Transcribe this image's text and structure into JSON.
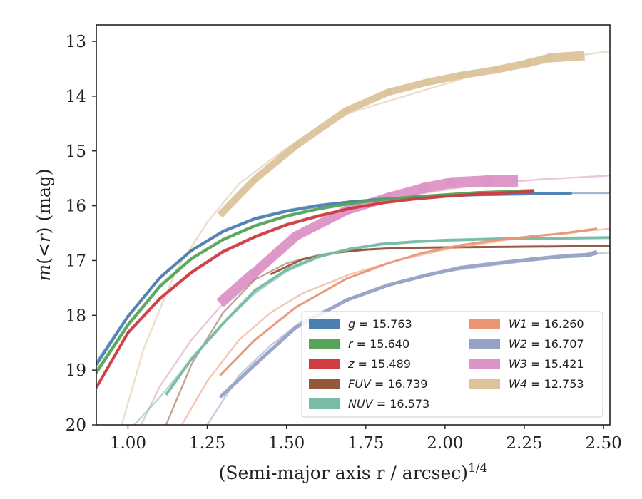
{
  "chart_data": {
    "type": "line",
    "xlabel": "(Semi-major axis r / arcsec)",
    "xlabel_sup": "1/4",
    "ylabel_parts": [
      "m",
      "(<",
      "r",
      ") (mag)"
    ],
    "xlim": [
      0.9,
      2.52
    ],
    "ylim": [
      20,
      12.7
    ],
    "y_inverted": true,
    "x_ticks": [
      1.0,
      1.25,
      1.5,
      1.75,
      2.0,
      2.25,
      2.5
    ],
    "x_tick_labels": [
      "1.00",
      "1.25",
      "1.50",
      "1.75",
      "2.00",
      "2.25",
      "2.50"
    ],
    "y_ticks": [
      13,
      14,
      15,
      16,
      17,
      18,
      19,
      20
    ],
    "y_tick_labels": [
      "13",
      "14",
      "15",
      "16",
      "17",
      "18",
      "19",
      "20"
    ],
    "legend": {
      "placement": "lower-right",
      "columns": 2,
      "entries": [
        {
          "band": "g",
          "value": "15.763",
          "color": "#4c7fb0"
        },
        {
          "band": "r",
          "value": "15.640",
          "color": "#55a45a"
        },
        {
          "band": "z",
          "value": "15.489",
          "color": "#cf3c42"
        },
        {
          "band": "FUV",
          "value": "16.739",
          "color": "#93573a"
        },
        {
          "band": "NUV",
          "value": "16.573",
          "color": "#78bba6"
        },
        {
          "band": "W1",
          "value": "16.260",
          "color": "#ea9674"
        },
        {
          "band": "W2",
          "value": "16.707",
          "color": "#97a2c4"
        },
        {
          "band": "W3",
          "value": "15.421",
          "color": "#dc94c6"
        },
        {
          "band": "W4",
          "value": "12.753",
          "color": "#dcc39c"
        }
      ]
    },
    "series": [
      {
        "band": "W4",
        "color": "#dcc39c",
        "model_x": [
          0.98,
          1.05,
          1.15,
          1.25,
          1.35,
          1.5,
          1.7,
          1.9,
          2.1,
          2.3,
          2.52
        ],
        "model_y": [
          20.0,
          18.6,
          17.2,
          16.3,
          15.6,
          14.95,
          14.3,
          13.95,
          13.6,
          13.35,
          13.18
        ],
        "data_x": [
          1.29,
          1.4,
          1.53,
          1.69,
          1.82,
          1.94,
          2.05,
          2.16,
          2.26,
          2.33,
          2.44
        ],
        "data_y": [
          16.17,
          15.52,
          14.9,
          14.26,
          13.93,
          13.75,
          13.62,
          13.52,
          13.4,
          13.3,
          13.26
        ],
        "data_w": [
          10,
          10,
          10,
          10,
          10,
          10,
          10,
          10,
          11,
          12,
          14
        ]
      },
      {
        "band": "W3",
        "color": "#dc94c6",
        "model_x": [
          1.0,
          1.1,
          1.2,
          1.29,
          1.4,
          1.55,
          1.7,
          1.9,
          2.1,
          2.3,
          2.52
        ],
        "model_y": [
          20.5,
          19.3,
          18.45,
          17.85,
          17.2,
          16.55,
          16.1,
          15.8,
          15.62,
          15.52,
          15.45
        ],
        "data_x": [
          1.29,
          1.4,
          1.53,
          1.69,
          1.82,
          1.93,
          2.02,
          2.13,
          2.23
        ],
        "data_y": [
          17.78,
          17.22,
          16.55,
          16.08,
          15.85,
          15.68,
          15.58,
          15.55,
          15.55
        ],
        "data_w": [
          16,
          14,
          13,
          13,
          13,
          14,
          15,
          16,
          17
        ]
      },
      {
        "band": "g",
        "color": "#4c7fb0",
        "model_x": [
          0.9,
          1.0,
          1.1,
          1.2,
          1.3,
          1.4,
          1.5,
          1.6,
          1.7,
          1.8,
          1.9,
          2.0,
          2.1,
          2.2,
          2.3,
          2.4,
          2.52
        ],
        "model_y": [
          18.85,
          18.0,
          17.3,
          16.8,
          16.45,
          16.22,
          16.08,
          15.98,
          15.92,
          15.88,
          15.85,
          15.82,
          15.8,
          15.79,
          15.78,
          15.77,
          15.77
        ],
        "data_x": [
          0.9,
          1.0,
          1.1,
          1.2,
          1.3,
          1.4,
          1.5,
          1.6,
          1.7,
          1.8,
          1.9,
          2.0,
          2.1,
          2.2,
          2.3,
          2.4
        ],
        "data_y": [
          18.9,
          18.02,
          17.32,
          16.82,
          16.47,
          16.24,
          16.1,
          16.0,
          15.93,
          15.88,
          15.85,
          15.82,
          15.8,
          15.79,
          15.78,
          15.77
        ],
        "data_w": [
          4,
          4,
          4,
          4,
          4,
          4,
          4,
          4,
          4,
          4,
          4,
          4,
          4,
          4,
          4,
          4
        ]
      },
      {
        "band": "r",
        "color": "#55a45a",
        "model_x": [
          0.9,
          1.0,
          1.1,
          1.2,
          1.3,
          1.4,
          1.5,
          1.6,
          1.7,
          1.8,
          1.9,
          2.0,
          2.1,
          2.2,
          2.28
        ],
        "model_y": [
          19.0,
          18.15,
          17.45,
          16.95,
          16.6,
          16.35,
          16.17,
          16.04,
          15.95,
          15.88,
          15.83,
          15.79,
          15.75,
          15.73,
          15.72
        ],
        "data_x": [
          0.9,
          1.0,
          1.1,
          1.2,
          1.3,
          1.4,
          1.5,
          1.6,
          1.7,
          1.8,
          1.9,
          2.0,
          2.1,
          2.2,
          2.28
        ],
        "data_y": [
          19.05,
          18.18,
          17.48,
          16.97,
          16.62,
          16.37,
          16.19,
          16.06,
          15.96,
          15.89,
          15.84,
          15.8,
          15.76,
          15.74,
          15.72
        ],
        "data_w": [
          4,
          4,
          4,
          4,
          4,
          4,
          4,
          4,
          4,
          4,
          4,
          4,
          4,
          4,
          4
        ]
      },
      {
        "band": "z",
        "color": "#cf3c42",
        "model_x": [
          0.9,
          1.0,
          1.1,
          1.2,
          1.3,
          1.4,
          1.5,
          1.6,
          1.7,
          1.8,
          1.9,
          2.0,
          2.1,
          2.2,
          2.28
        ],
        "model_y": [
          19.3,
          18.3,
          17.68,
          17.2,
          16.82,
          16.55,
          16.33,
          16.17,
          16.04,
          15.94,
          15.87,
          15.82,
          15.78,
          15.75,
          15.74
        ],
        "data_x": [
          0.9,
          1.0,
          1.1,
          1.2,
          1.3,
          1.4,
          1.5,
          1.6,
          1.7,
          1.8,
          1.9,
          2.0,
          2.1,
          2.2,
          2.28
        ],
        "data_y": [
          19.32,
          18.32,
          17.7,
          17.22,
          16.84,
          16.57,
          16.35,
          16.19,
          16.05,
          15.95,
          15.88,
          15.83,
          15.79,
          15.76,
          15.74
        ],
        "data_w": [
          4,
          4,
          4,
          4,
          4,
          4,
          4,
          4,
          4,
          4,
          4,
          4,
          4,
          4,
          4
        ]
      },
      {
        "band": "FUV",
        "color": "#93573a",
        "model_x": [
          1.12,
          1.2,
          1.3,
          1.4,
          1.5,
          1.6,
          1.7,
          1.8,
          1.9,
          2.0,
          2.2,
          2.4,
          2.52
        ],
        "model_y": [
          20.0,
          18.9,
          17.95,
          17.35,
          17.05,
          16.9,
          16.82,
          16.79,
          16.77,
          16.76,
          16.75,
          16.74,
          16.74
        ],
        "data_x": [
          1.45,
          1.55,
          1.65,
          1.75,
          1.85,
          2.0,
          2.2,
          2.4,
          2.52
        ],
        "data_y": [
          17.25,
          16.98,
          16.86,
          16.8,
          16.77,
          16.76,
          16.75,
          16.74,
          16.74
        ],
        "data_w": [
          3,
          3,
          3,
          3,
          3,
          3,
          3,
          3,
          3
        ]
      },
      {
        "band": "NUV",
        "color": "#78bba6",
        "model_x": [
          1.02,
          1.1,
          1.2,
          1.3,
          1.4,
          1.5,
          1.6,
          1.7,
          1.8,
          1.9,
          2.0,
          2.2,
          2.4,
          2.52
        ],
        "model_y": [
          20.0,
          19.5,
          18.8,
          18.15,
          17.6,
          17.2,
          16.95,
          16.78,
          16.7,
          16.66,
          16.63,
          16.6,
          16.59,
          16.58
        ],
        "data_x": [
          1.12,
          1.2,
          1.3,
          1.4,
          1.5,
          1.6,
          1.7,
          1.8,
          1.9,
          2.0,
          2.2,
          2.4,
          2.52
        ],
        "data_y": [
          19.45,
          18.8,
          18.15,
          17.55,
          17.17,
          16.93,
          16.79,
          16.7,
          16.66,
          16.63,
          16.6,
          16.59,
          16.58
        ],
        "data_w": [
          4,
          4,
          4,
          4,
          4,
          4,
          4,
          4,
          4,
          4,
          4,
          4,
          4
        ]
      },
      {
        "band": "W1",
        "color": "#ea9674",
        "model_x": [
          1.17,
          1.25,
          1.35,
          1.45,
          1.55,
          1.7,
          1.85,
          2.0,
          2.2,
          2.4,
          2.52
        ],
        "model_y": [
          20.0,
          19.2,
          18.45,
          17.95,
          17.6,
          17.25,
          17.0,
          16.8,
          16.62,
          16.48,
          16.42
        ],
        "data_x": [
          1.29,
          1.4,
          1.53,
          1.69,
          1.82,
          1.93,
          2.05,
          2.16,
          2.27,
          2.38,
          2.48
        ],
        "data_y": [
          19.1,
          18.45,
          17.85,
          17.33,
          17.05,
          16.86,
          16.72,
          16.63,
          16.56,
          16.5,
          16.42
        ],
        "data_w": [
          3,
          3,
          3,
          3,
          3,
          3,
          3,
          3,
          3,
          3,
          4
        ]
      },
      {
        "band": "W2",
        "color": "#97a2c4",
        "model_x": [
          1.25,
          1.35,
          1.45,
          1.55,
          1.7,
          1.85,
          2.0,
          2.2,
          2.4,
          2.52
        ],
        "model_y": [
          20.0,
          19.1,
          18.55,
          18.1,
          17.7,
          17.4,
          17.2,
          17.05,
          16.92,
          16.85
        ],
        "data_x": [
          1.29,
          1.4,
          1.53,
          1.69,
          1.82,
          1.94,
          2.05,
          2.16,
          2.27,
          2.38,
          2.45,
          2.48
        ],
        "data_y": [
          19.5,
          18.9,
          18.22,
          17.72,
          17.45,
          17.27,
          17.13,
          17.05,
          16.98,
          16.92,
          16.9,
          16.85
        ],
        "data_w": [
          5,
          5,
          5,
          5,
          5,
          5,
          5,
          5,
          5,
          6,
          6,
          7
        ]
      }
    ]
  }
}
